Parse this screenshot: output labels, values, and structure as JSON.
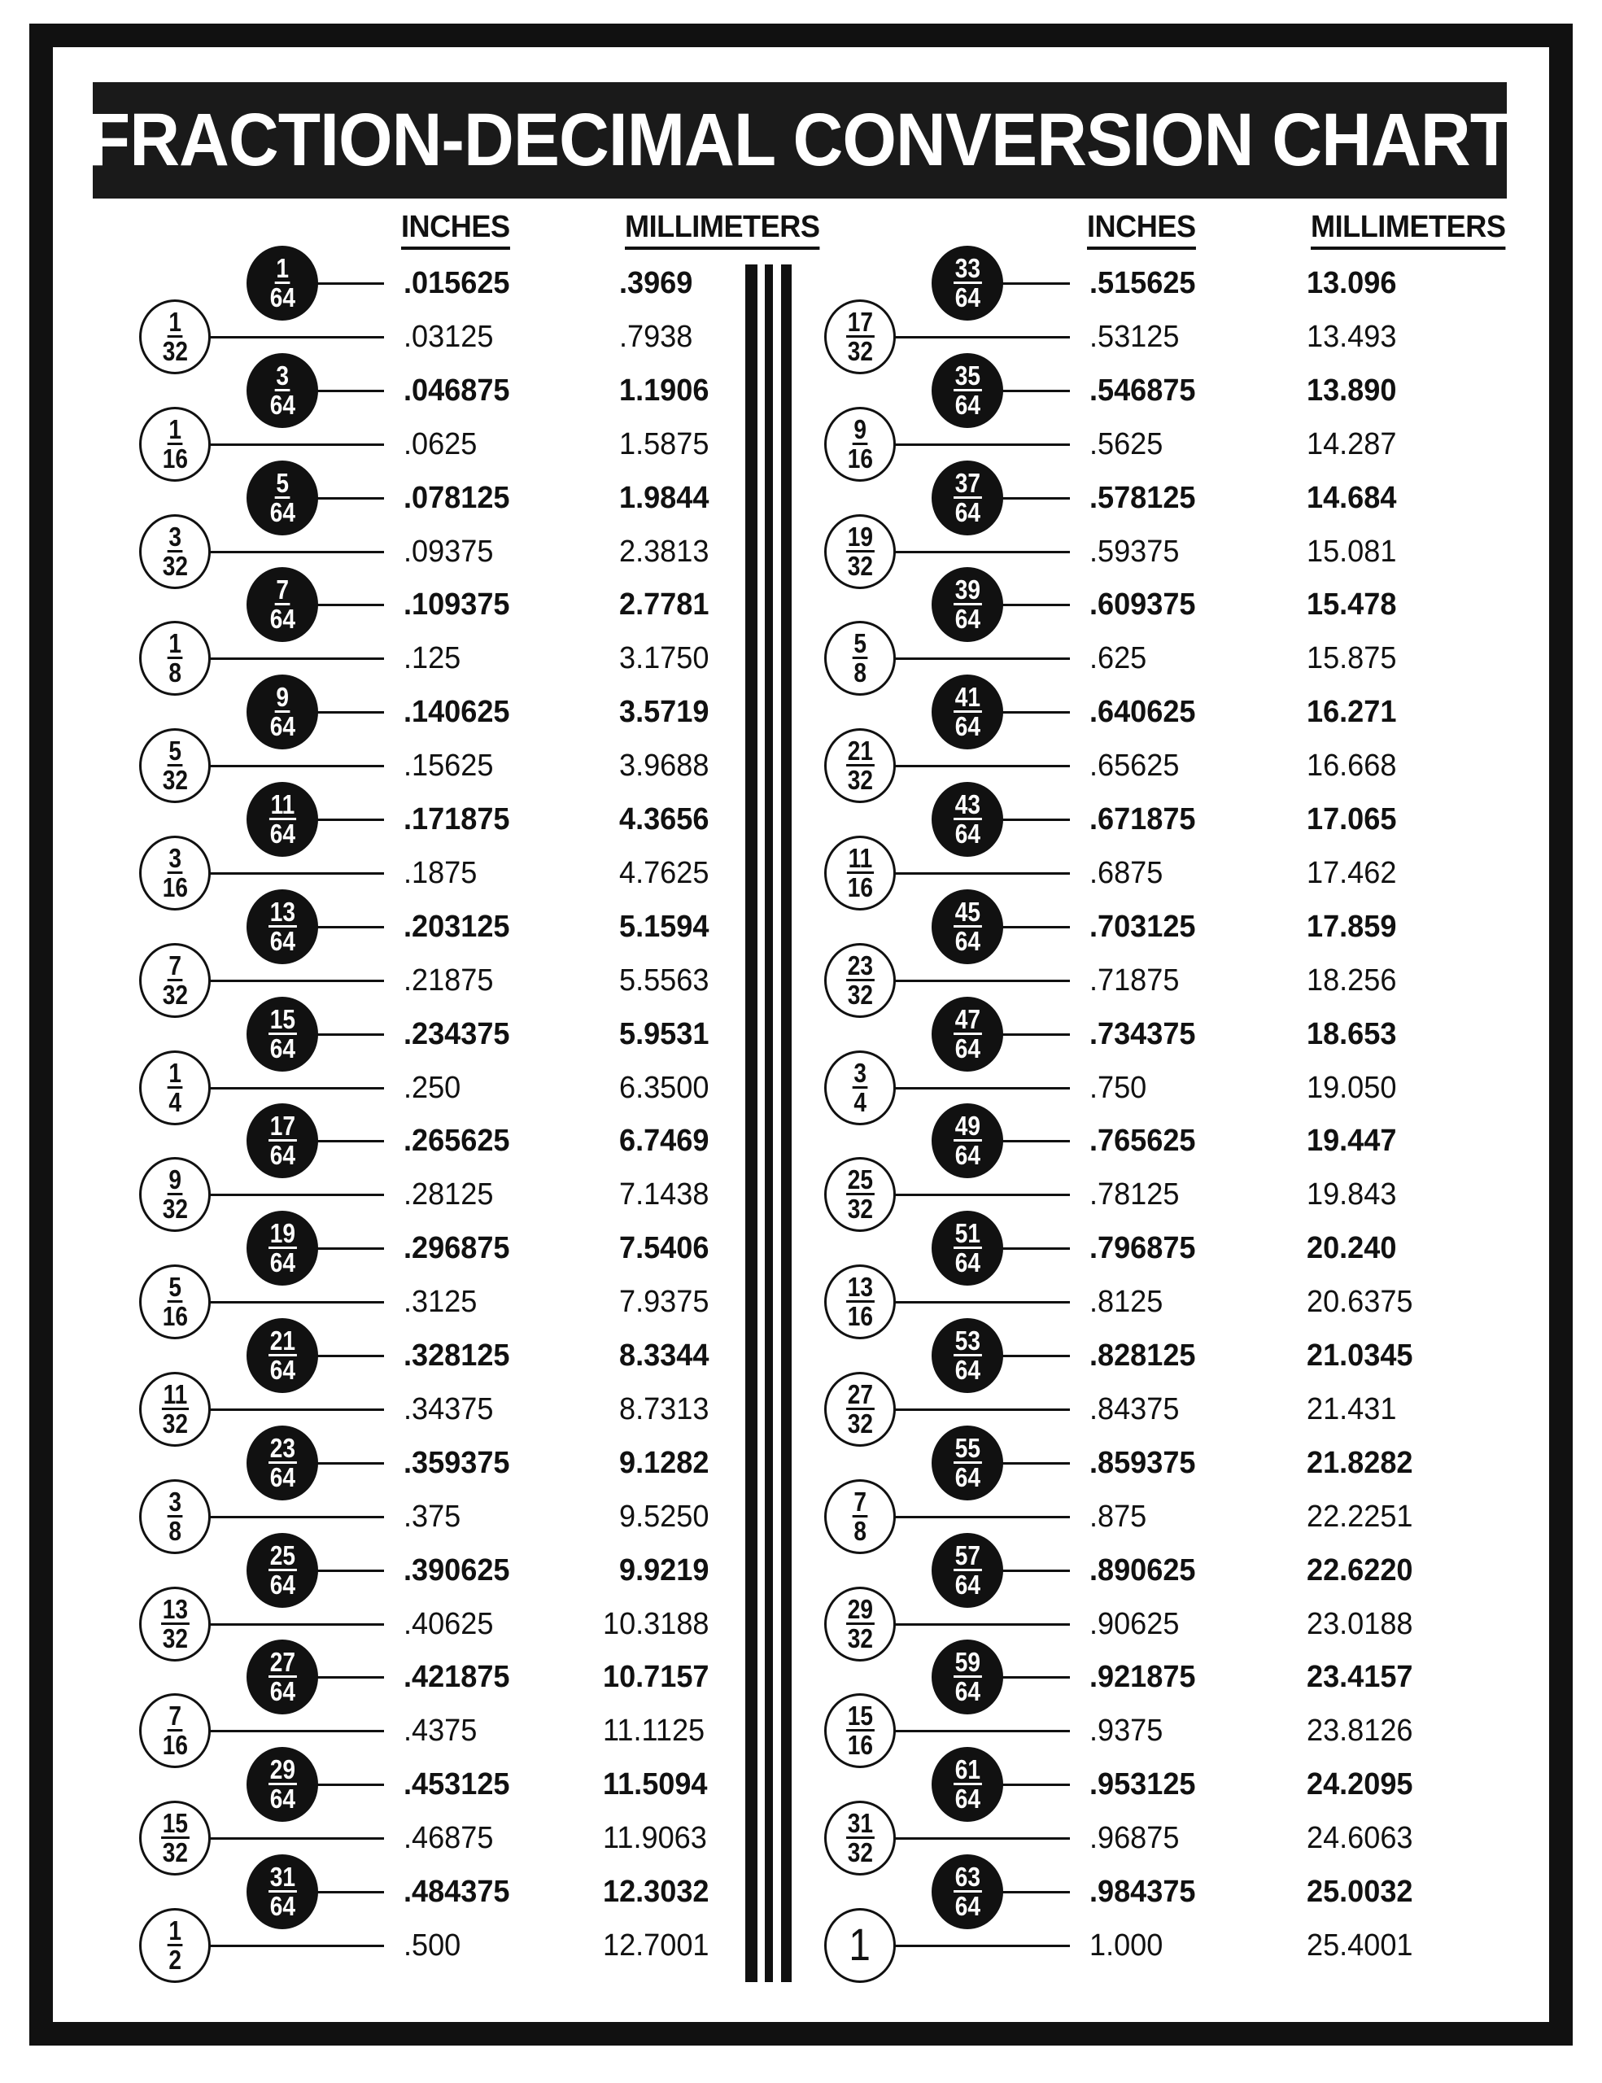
{
  "title": "FRACTION-DECIMAL CONVERSION CHART",
  "headers": {
    "inches": "INCHES",
    "millimeters": "MILLIMETERS"
  },
  "left_rows": [
    {
      "num": "1",
      "den": "64",
      "inches": ".015625",
      "mm": ".3969"
    },
    {
      "num": "1",
      "den": "32",
      "inches": ".03125",
      "mm": ".7938"
    },
    {
      "num": "3",
      "den": "64",
      "inches": ".046875",
      "mm": "1.1906"
    },
    {
      "num": "1",
      "den": "16",
      "inches": ".0625",
      "mm": "1.5875"
    },
    {
      "num": "5",
      "den": "64",
      "inches": ".078125",
      "mm": "1.9844"
    },
    {
      "num": "3",
      "den": "32",
      "inches": ".09375",
      "mm": "2.3813"
    },
    {
      "num": "7",
      "den": "64",
      "inches": ".109375",
      "mm": "2.7781"
    },
    {
      "num": "1",
      "den": "8",
      "inches": ".125",
      "mm": "3.1750"
    },
    {
      "num": "9",
      "den": "64",
      "inches": ".140625",
      "mm": "3.5719"
    },
    {
      "num": "5",
      "den": "32",
      "inches": ".15625",
      "mm": "3.9688"
    },
    {
      "num": "11",
      "den": "64",
      "inches": ".171875",
      "mm": "4.3656"
    },
    {
      "num": "3",
      "den": "16",
      "inches": ".1875",
      "mm": "4.7625"
    },
    {
      "num": "13",
      "den": "64",
      "inches": ".203125",
      "mm": "5.1594"
    },
    {
      "num": "7",
      "den": "32",
      "inches": ".21875",
      "mm": "5.5563"
    },
    {
      "num": "15",
      "den": "64",
      "inches": ".234375",
      "mm": "5.9531"
    },
    {
      "num": "1",
      "den": "4",
      "inches": ".250",
      "mm": "6.3500"
    },
    {
      "num": "17",
      "den": "64",
      "inches": ".265625",
      "mm": "6.7469"
    },
    {
      "num": "9",
      "den": "32",
      "inches": ".28125",
      "mm": "7.1438"
    },
    {
      "num": "19",
      "den": "64",
      "inches": ".296875",
      "mm": "7.5406"
    },
    {
      "num": "5",
      "den": "16",
      "inches": ".3125",
      "mm": "7.9375"
    },
    {
      "num": "21",
      "den": "64",
      "inches": ".328125",
      "mm": "8.3344"
    },
    {
      "num": "11",
      "den": "32",
      "inches": ".34375",
      "mm": "8.7313"
    },
    {
      "num": "23",
      "den": "64",
      "inches": ".359375",
      "mm": "9.1282"
    },
    {
      "num": "3",
      "den": "8",
      "inches": ".375",
      "mm": "9.5250"
    },
    {
      "num": "25",
      "den": "64",
      "inches": ".390625",
      "mm": "9.9219"
    },
    {
      "num": "13",
      "den": "32",
      "inches": ".40625",
      "mm": "10.3188"
    },
    {
      "num": "27",
      "den": "64",
      "inches": ".421875",
      "mm": "10.7157"
    },
    {
      "num": "7",
      "den": "16",
      "inches": ".4375",
      "mm": "11.1125"
    },
    {
      "num": "29",
      "den": "64",
      "inches": ".453125",
      "mm": "11.5094"
    },
    {
      "num": "15",
      "den": "32",
      "inches": ".46875",
      "mm": "11.9063"
    },
    {
      "num": "31",
      "den": "64",
      "inches": ".484375",
      "mm": "12.3032"
    },
    {
      "num": "1",
      "den": "2",
      "inches": ".500",
      "mm": "12.7001"
    }
  ],
  "right_rows": [
    {
      "num": "33",
      "den": "64",
      "inches": ".515625",
      "mm": "13.096"
    },
    {
      "num": "17",
      "den": "32",
      "inches": ".53125",
      "mm": "13.493"
    },
    {
      "num": "35",
      "den": "64",
      "inches": ".546875",
      "mm": "13.890"
    },
    {
      "num": "9",
      "den": "16",
      "inches": ".5625",
      "mm": "14.287"
    },
    {
      "num": "37",
      "den": "64",
      "inches": ".578125",
      "mm": "14.684"
    },
    {
      "num": "19",
      "den": "32",
      "inches": ".59375",
      "mm": "15.081"
    },
    {
      "num": "39",
      "den": "64",
      "inches": ".609375",
      "mm": "15.478"
    },
    {
      "num": "5",
      "den": "8",
      "inches": ".625",
      "mm": "15.875"
    },
    {
      "num": "41",
      "den": "64",
      "inches": ".640625",
      "mm": "16.271"
    },
    {
      "num": "21",
      "den": "32",
      "inches": ".65625",
      "mm": "16.668"
    },
    {
      "num": "43",
      "den": "64",
      "inches": ".671875",
      "mm": "17.065"
    },
    {
      "num": "11",
      "den": "16",
      "inches": ".6875",
      "mm": "17.462"
    },
    {
      "num": "45",
      "den": "64",
      "inches": ".703125",
      "mm": "17.859"
    },
    {
      "num": "23",
      "den": "32",
      "inches": ".71875",
      "mm": "18.256"
    },
    {
      "num": "47",
      "den": "64",
      "inches": ".734375",
      "mm": "18.653"
    },
    {
      "num": "3",
      "den": "4",
      "inches": ".750",
      "mm": "19.050"
    },
    {
      "num": "49",
      "den": "64",
      "inches": ".765625",
      "mm": "19.447"
    },
    {
      "num": "25",
      "den": "32",
      "inches": ".78125",
      "mm": "19.843"
    },
    {
      "num": "51",
      "den": "64",
      "inches": ".796875",
      "mm": "20.240"
    },
    {
      "num": "13",
      "den": "16",
      "inches": ".8125",
      "mm": "20.6375"
    },
    {
      "num": "53",
      "den": "64",
      "inches": ".828125",
      "mm": "21.0345"
    },
    {
      "num": "27",
      "den": "32",
      "inches": ".84375",
      "mm": "21.431"
    },
    {
      "num": "55",
      "den": "64",
      "inches": ".859375",
      "mm": "21.8282"
    },
    {
      "num": "7",
      "den": "8",
      "inches": ".875",
      "mm": "22.2251"
    },
    {
      "num": "57",
      "den": "64",
      "inches": ".890625",
      "mm": "22.6220"
    },
    {
      "num": "29",
      "den": "32",
      "inches": ".90625",
      "mm": "23.0188"
    },
    {
      "num": "59",
      "den": "64",
      "inches": ".921875",
      "mm": "23.4157"
    },
    {
      "num": "15",
      "den": "16",
      "inches": ".9375",
      "mm": "23.8126"
    },
    {
      "num": "61",
      "den": "64",
      "inches": ".953125",
      "mm": "24.2095"
    },
    {
      "num": "31",
      "den": "32",
      "inches": ".96875",
      "mm": "24.6063"
    },
    {
      "num": "63",
      "den": "64",
      "inches": ".984375",
      "mm": "25.0032"
    },
    {
      "num": "1",
      "den": "",
      "inches": "1.000",
      "mm": "25.4001"
    }
  ],
  "colors": {
    "ink": "#111111",
    "paper": "#ffffff"
  }
}
